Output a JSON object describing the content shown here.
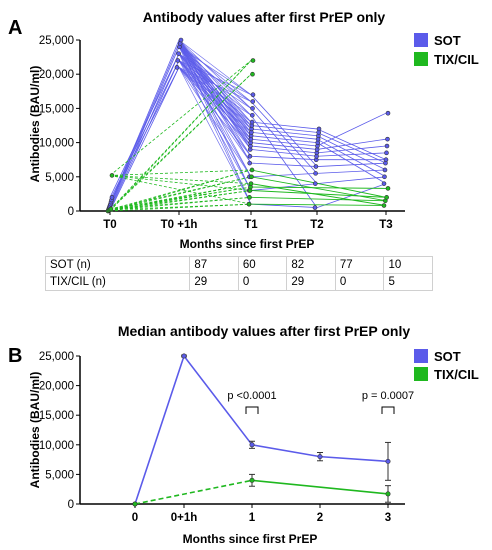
{
  "panel_a": {
    "letter": "A"
  },
  "panel_b": {
    "letter": "B"
  },
  "colors": {
    "sot": "#5b5bea",
    "tix": "#1fb81f",
    "axis": "#000000"
  },
  "chart_data": [
    {
      "type": "line",
      "title": "Antibody values after first PrEP only",
      "xlabel": "Months since first PrEP",
      "ylabel": "Antibodies (BAU/ml)",
      "categories": [
        "T0",
        "T0 +1h",
        "T1",
        "T2",
        "T3"
      ],
      "ylim": [
        0,
        25000
      ],
      "yticks": [
        "0",
        "5,000",
        "10,000",
        "15,000",
        "20,000",
        "25,000"
      ],
      "legend": {
        "placement": "top-right",
        "entries": [
          "SOT",
          "TIX/CIL"
        ]
      },
      "series": [
        {
          "name": "SOT",
          "color": "#5b5bea",
          "style": "solid",
          "t0": [
            0,
            200,
            400,
            600,
            800,
            1000,
            1300,
            1600,
            2000
          ],
          "t0_1h": [
            21000,
            22000,
            23000,
            24000,
            24500,
            25000
          ],
          "t1": [
            1000,
            3000,
            5000,
            7000,
            8000,
            9000,
            9500,
            10000,
            10500,
            11000,
            11500,
            12000,
            12500,
            13000,
            14000,
            15000,
            16000,
            17000
          ],
          "t2": [
            500,
            4000,
            5500,
            6500,
            7500,
            8000,
            8500,
            9000,
            9500,
            10000,
            10500,
            11000,
            11500,
            12000
          ],
          "t3": [
            4000,
            5000,
            6000,
            7000,
            7500,
            8500,
            9500,
            10500,
            14300
          ]
        },
        {
          "name": "TIX/CIL",
          "color": "#1fb81f",
          "style": "dashed-then-solid",
          "t0": [
            0,
            100,
            200,
            300,
            5200
          ],
          "t1": [
            1000,
            2000,
            3000,
            3500,
            4000,
            5000,
            6000,
            20000,
            22000
          ],
          "t3": [
            800,
            1500,
            2000,
            3300
          ]
        }
      ],
      "table": {
        "rows": [
          {
            "label": "SOT (n)",
            "values": [
              "87",
              "60",
              "82",
              "77",
              "10"
            ]
          },
          {
            "label": "TIX/CIL (n)",
            "values": [
              "29",
              "0",
              "29",
              "0",
              "5"
            ]
          }
        ]
      }
    },
    {
      "type": "line",
      "title": "Median antibody values after first PrEP only",
      "xlabel": "Months since first PrEP",
      "ylabel": "Antibodies (BAU/ml)",
      "categories": [
        "0",
        "0+1h",
        "1",
        "2",
        "3"
      ],
      "ylim": [
        0,
        25000
      ],
      "yticks": [
        "0",
        "5,000",
        "10,000",
        "15,000",
        "20,000",
        "25,000"
      ],
      "legend": {
        "placement": "top-right",
        "entries": [
          "SOT",
          "TIX/CIL"
        ]
      },
      "series": [
        {
          "name": "SOT",
          "color": "#5b5bea",
          "values": [
            0,
            25000,
            10000,
            8000,
            7200
          ],
          "err": [
            0,
            150,
            600,
            700,
            3200
          ]
        },
        {
          "name": "TIX/CIL",
          "color": "#1fb81f",
          "values": [
            0,
            null,
            4000,
            null,
            1700
          ],
          "err": [
            0,
            null,
            1000,
            null,
            1400
          ]
        }
      ],
      "annotations": [
        {
          "text": "p <0.0001",
          "category": "1"
        },
        {
          "text": "p = 0.0007",
          "category": "3"
        }
      ]
    }
  ]
}
